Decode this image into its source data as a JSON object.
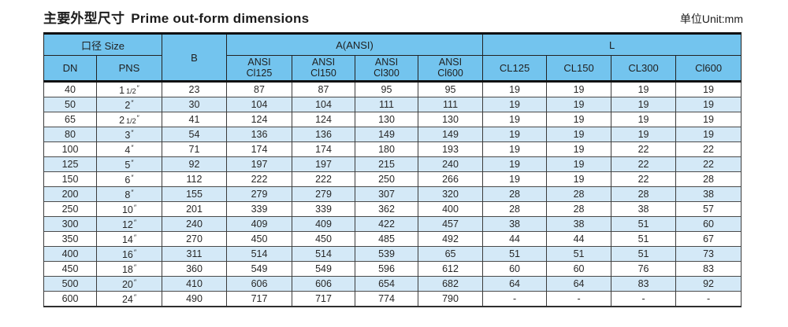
{
  "page": {
    "title_zh": "主要外型尺寸",
    "title_en": "Prime out-form dimensions",
    "unit_label": "单位Unit:mm"
  },
  "colors": {
    "header_blue": "#73C4EE",
    "row_alt_blue": "#D4E9F7",
    "border_dark": "#101010",
    "text": "#282828"
  },
  "table": {
    "header": {
      "size_group": "口径 Size",
      "dn": "DN",
      "pns": "PNS",
      "b": "B",
      "a_group": "A(ANSI)",
      "l_group": "L",
      "ansi_cols": [
        [
          "ANSI",
          "Cl125"
        ],
        [
          "ANSI",
          "Cl150"
        ],
        [
          "ANSI",
          "Cl300"
        ],
        [
          "ANSI",
          "Cl600"
        ]
      ],
      "l_cols": [
        "CL125",
        "CL150",
        "CL300",
        "Cl600"
      ]
    },
    "rows": [
      {
        "dn": "40",
        "pns_main": "1",
        "pns_frac": "1/2",
        "pns_mark": "″",
        "b": "23",
        "vals": [
          "87",
          "87",
          "95",
          "95",
          "19",
          "19",
          "19",
          "19"
        ]
      },
      {
        "dn": "50",
        "pns_main": "2",
        "pns_frac": "",
        "pns_mark": "″",
        "b": "30",
        "vals": [
          "104",
          "104",
          "111",
          "111",
          "19",
          "19",
          "19",
          "19"
        ]
      },
      {
        "dn": "65",
        "pns_main": "2",
        "pns_frac": "1/2",
        "pns_mark": "″",
        "b": "41",
        "vals": [
          "124",
          "124",
          "130",
          "130",
          "19",
          "19",
          "19",
          "19"
        ]
      },
      {
        "dn": "80",
        "pns_main": "3",
        "pns_frac": "",
        "pns_mark": "″",
        "b": "54",
        "vals": [
          "136",
          "136",
          "149",
          "149",
          "19",
          "19",
          "19",
          "19"
        ]
      },
      {
        "dn": "100",
        "pns_main": "4",
        "pns_frac": "",
        "pns_mark": "″",
        "b": "71",
        "vals": [
          "174",
          "174",
          "180",
          "193",
          "19",
          "19",
          "22",
          "22"
        ]
      },
      {
        "dn": "125",
        "pns_main": "5",
        "pns_frac": "",
        "pns_mark": "″",
        "b": "92",
        "vals": [
          "197",
          "197",
          "215",
          "240",
          "19",
          "19",
          "22",
          "22"
        ]
      },
      {
        "dn": "150",
        "pns_main": "6",
        "pns_frac": "",
        "pns_mark": "″",
        "b": "112",
        "vals": [
          "222",
          "222",
          "250",
          "266",
          "19",
          "19",
          "22",
          "28"
        ]
      },
      {
        "dn": "200",
        "pns_main": "8",
        "pns_frac": "",
        "pns_mark": "″",
        "b": "155",
        "vals": [
          "279",
          "279",
          "307",
          "320",
          "28",
          "28",
          "28",
          "38"
        ]
      },
      {
        "dn": "250",
        "pns_main": "10",
        "pns_frac": "",
        "pns_mark": "″",
        "b": "201",
        "vals": [
          "339",
          "339",
          "362",
          "400",
          "28",
          "28",
          "38",
          "57"
        ]
      },
      {
        "dn": "300",
        "pns_main": "12",
        "pns_frac": "",
        "pns_mark": "″",
        "b": "240",
        "vals": [
          "409",
          "409",
          "422",
          "457",
          "38",
          "38",
          "51",
          "60"
        ]
      },
      {
        "dn": "350",
        "pns_main": "14",
        "pns_frac": "",
        "pns_mark": "″",
        "b": "270",
        "vals": [
          "450",
          "450",
          "485",
          "492",
          "44",
          "44",
          "51",
          "67"
        ]
      },
      {
        "dn": "400",
        "pns_main": "16",
        "pns_frac": "",
        "pns_mark": "″",
        "b": "311",
        "vals": [
          "514",
          "514",
          "539",
          "65",
          "51",
          "51",
          "51",
          "73"
        ]
      },
      {
        "dn": "450",
        "pns_main": "18",
        "pns_frac": "",
        "pns_mark": "″",
        "b": "360",
        "vals": [
          "549",
          "549",
          "596",
          "612",
          "60",
          "60",
          "76",
          "83"
        ]
      },
      {
        "dn": "500",
        "pns_main": "20",
        "pns_frac": "",
        "pns_mark": "″",
        "b": "410",
        "vals": [
          "606",
          "606",
          "654",
          "682",
          "64",
          "64",
          "83",
          "92"
        ]
      },
      {
        "dn": "600",
        "pns_main": "24",
        "pns_frac": "",
        "pns_mark": "″",
        "b": "490",
        "vals": [
          "717",
          "717",
          "774",
          "790",
          "-",
          "-",
          "-",
          "-"
        ]
      }
    ]
  }
}
